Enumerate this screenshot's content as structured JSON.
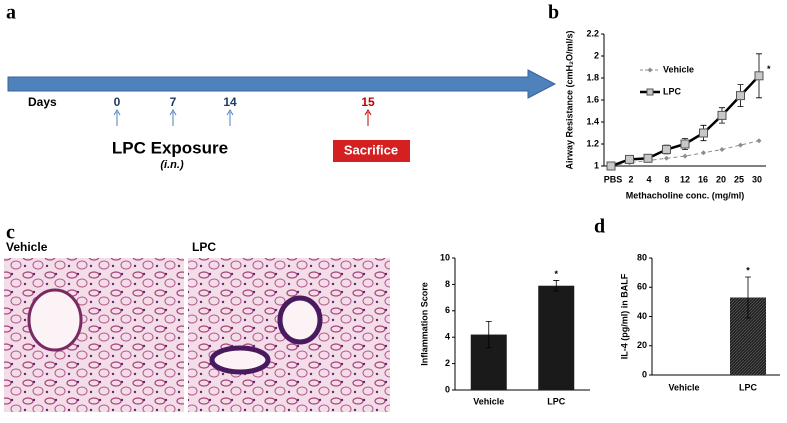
{
  "panels": {
    "a": "a",
    "b": "b",
    "c": "c",
    "d": "d"
  },
  "timeline": {
    "axis_label": "Days",
    "days": [
      0,
      7,
      14,
      15
    ],
    "day_colors": [
      "#1f3864",
      "#1f3864",
      "#1f3864",
      "#c00000"
    ],
    "exposure": "LPC Exposure",
    "route": "(i.n.)",
    "endpoint": "Sacrifice"
  },
  "histology": {
    "labels": [
      "Vehicle",
      "LPC"
    ]
  },
  "chart_data": [
    {
      "type": "line",
      "categories": [
        "PBS",
        "2",
        "4",
        "8",
        "12",
        "16",
        "20",
        "25",
        "30"
      ],
      "xlabel": "Methacholine conc. (mg/ml)",
      "ylabel": "Airway Resistance (cmH₂O/ml/s)",
      "ylim": [
        1,
        2.2
      ],
      "yticks": [
        1,
        1.2,
        1.4,
        1.6,
        1.8,
        2,
        2.2
      ],
      "legend": "upper left",
      "series": [
        {
          "name": "Vehicle",
          "color": "#8c8c8c",
          "dash": true,
          "marker": "diamond",
          "values": [
            1.0,
            1.03,
            1.05,
            1.07,
            1.09,
            1.12,
            1.15,
            1.19,
            1.23
          ]
        },
        {
          "name": "LPC",
          "color": "#000000",
          "dash": false,
          "marker": "square",
          "values": [
            1.0,
            1.06,
            1.07,
            1.15,
            1.2,
            1.3,
            1.46,
            1.64,
            1.82
          ],
          "errors": [
            0.01,
            0.02,
            0.02,
            0.04,
            0.05,
            0.07,
            0.07,
            0.1,
            0.2
          ]
        }
      ],
      "annotation": {
        "text": "*",
        "series": "LPC",
        "category": "30"
      }
    },
    {
      "type": "bar",
      "categories": [
        "Vehicle",
        "LPC"
      ],
      "values": [
        4.2,
        7.9
      ],
      "errors": [
        1.0,
        0.4
      ],
      "color": "#1a1a1a",
      "ylabel": "Inflammation Score",
      "ylim": [
        0,
        10
      ],
      "yticks": [
        0,
        2,
        4,
        6,
        8,
        10
      ],
      "annotation": {
        "text": "*",
        "category": "LPC"
      }
    },
    {
      "type": "bar",
      "categories": [
        "Vehicle",
        "LPC"
      ],
      "values": [
        0,
        53
      ],
      "errors": [
        null,
        14
      ],
      "color": "#3a3a3a",
      "ylabel": "IL-4 (pg/ml) in BALF",
      "ylim": [
        0,
        80
      ],
      "yticks": [
        0,
        20,
        40,
        60,
        80
      ],
      "annotation": {
        "text": "*",
        "category": "LPC"
      }
    }
  ]
}
